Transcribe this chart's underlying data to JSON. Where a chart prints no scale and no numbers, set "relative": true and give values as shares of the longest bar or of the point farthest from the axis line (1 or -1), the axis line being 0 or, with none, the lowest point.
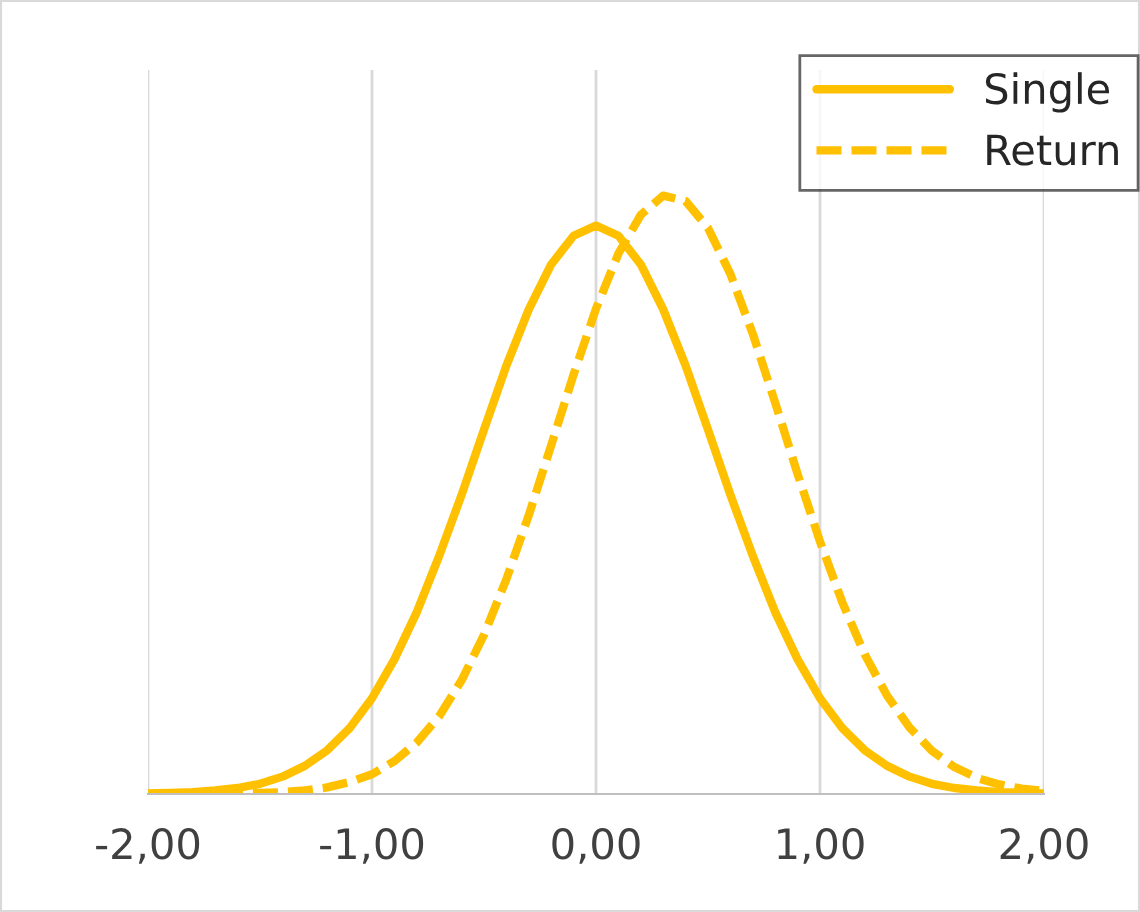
{
  "chart_data": {
    "type": "line",
    "relative": true,
    "x": [
      -2.0,
      -1.9,
      -1.8,
      -1.7,
      -1.6,
      -1.5,
      -1.4,
      -1.3,
      -1.2,
      -1.1,
      -1.0,
      -0.9,
      -0.8,
      -0.7,
      -0.6,
      -0.5,
      -0.4,
      -0.3,
      -0.2,
      -0.1,
      0.0,
      0.1,
      0.2,
      0.3,
      0.4,
      0.5,
      0.6,
      0.7,
      0.8,
      0.9,
      1.0,
      1.1,
      1.2,
      1.3,
      1.4,
      1.5,
      1.6,
      1.7,
      1.8,
      1.9,
      2.0
    ],
    "series": [
      {
        "name": "Single",
        "color": "#ffc000",
        "line_style": "solid",
        "values": [
          0.001,
          0.002,
          0.003,
          0.006,
          0.01,
          0.017,
          0.029,
          0.047,
          0.073,
          0.11,
          0.16,
          0.225,
          0.304,
          0.398,
          0.5,
          0.609,
          0.716,
          0.81,
          0.885,
          0.933,
          0.95,
          0.933,
          0.885,
          0.81,
          0.716,
          0.609,
          0.5,
          0.398,
          0.304,
          0.225,
          0.16,
          0.11,
          0.073,
          0.047,
          0.029,
          0.017,
          0.01,
          0.006,
          0.003,
          0.002,
          0.001
        ]
      },
      {
        "name": "Return",
        "color": "#ffc000",
        "line_style": "dashed",
        "values": [
          0.0,
          0.0,
          0.0,
          0.0,
          0.001,
          0.002,
          0.003,
          0.006,
          0.011,
          0.02,
          0.033,
          0.055,
          0.086,
          0.13,
          0.19,
          0.266,
          0.359,
          0.466,
          0.583,
          0.701,
          0.811,
          0.903,
          0.968,
          1.0,
          0.991,
          0.946,
          0.869,
          0.769,
          0.654,
          0.535,
          0.422,
          0.32,
          0.233,
          0.164,
          0.111,
          0.072,
          0.045,
          0.027,
          0.016,
          0.009,
          0.005
        ]
      }
    ],
    "xlim": [
      -2,
      2
    ],
    "xticks": [
      {
        "value": -2,
        "label": "-2,00"
      },
      {
        "value": -1,
        "label": "-1,00"
      },
      {
        "value": 0,
        "label": "0,00"
      },
      {
        "value": 1,
        "label": "1,00"
      },
      {
        "value": 2,
        "label": "2,00"
      }
    ],
    "grid": "x",
    "legend": "top right",
    "marker": "none"
  }
}
